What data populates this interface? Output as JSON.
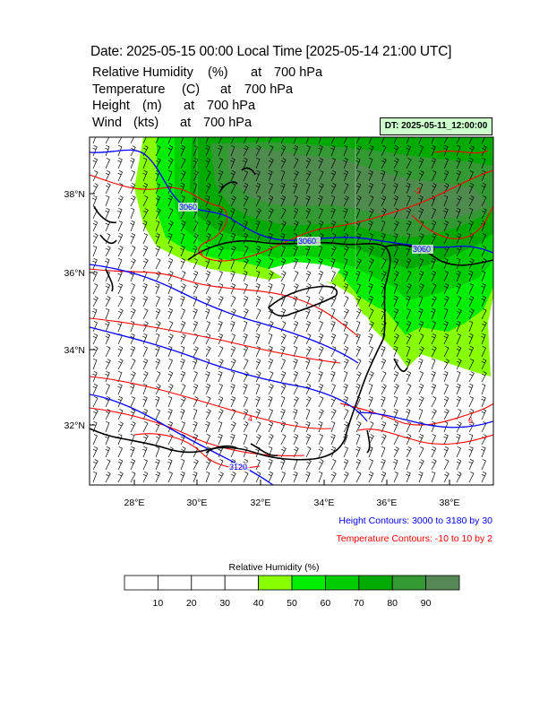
{
  "title": "Date: 2025-05-15  00:00 Local Time [2025-05-14  21:00 UTC]",
  "fields": [
    {
      "name": "Relative Humidity",
      "unit": "(%)",
      "at": "at",
      "level": "700 hPa"
    },
    {
      "name": "Temperature",
      "unit": "(C)",
      "at": "at",
      "level": "700 hPa"
    },
    {
      "name": "Height",
      "unit": "(m)",
      "at": "at",
      "level": "700 hPa"
    },
    {
      "name": "Wind",
      "unit": "(kts)",
      "at": "at",
      "level": "700 hPa"
    }
  ],
  "dt_label": "DT: 2025-05-11_12:00:00",
  "map": {
    "lon_range": [
      26.6,
      39.4
    ],
    "lat_range": [
      30.5,
      39.4
    ],
    "lat_ticks": [
      "38°N",
      "36°N",
      "34°N",
      "32°N"
    ],
    "lon_ticks": [
      "28°E",
      "30°E",
      "32°E",
      "34°E",
      "36°E",
      "38°E"
    ],
    "height_labels": [
      "3060",
      "3060",
      "3060",
      "3120"
    ],
    "temp_labels": [
      "-4",
      "-2",
      "4",
      "6"
    ],
    "colors": {
      "land_outline": "#000000",
      "height_contour": "#0000ff",
      "temp_contour": "#ff0000",
      "wind_barb": "#000000"
    }
  },
  "height_contours_label": "Height Contours: 3000 to 3180 by 30",
  "temp_contours_label": "Temperature Contours: -10 to 10 by 2",
  "colorbar": {
    "title": "Relative Humidity  (%)",
    "labels": [
      "10",
      "20",
      "30",
      "40",
      "50",
      "60",
      "70",
      "80",
      "90"
    ],
    "colors": [
      "#ffffff",
      "#ffffff",
      "#ffffff",
      "#ffffff",
      "#88ff00",
      "#00ee00",
      "#00cc00",
      "#00aa00",
      "#339933",
      "#558855"
    ]
  }
}
